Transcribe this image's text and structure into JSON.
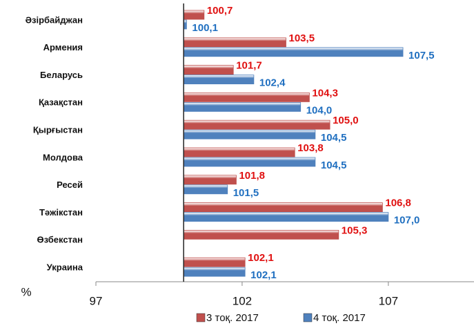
{
  "chart_data": {
    "type": "hbar",
    "axis_label": "%",
    "categories": [
      "Әзірбайджан",
      "Армения",
      "Беларусь",
      "Қазақстан",
      "Қырғыстан",
      "Молдова",
      "Ресей",
      "Тәжікстан",
      "Өзбекстан",
      "Украина"
    ],
    "series": [
      {
        "name": "3 тоқ. 2017",
        "color": "#c0504d",
        "label_color": "#e01010",
        "values": [
          100.7,
          103.5,
          101.7,
          104.3,
          105.0,
          103.8,
          101.8,
          106.8,
          105.3,
          102.1
        ],
        "value_labels": [
          "100,7",
          "103,5",
          "101,7",
          "104,3",
          "105,0",
          "103,8",
          "101,8",
          "106,8",
          "105,3",
          "102,1"
        ]
      },
      {
        "name": "4 тоқ. 2017",
        "color": "#4f81bd",
        "label_color": "#1f6fc0",
        "values": [
          100.1,
          107.5,
          102.4,
          104.0,
          104.5,
          104.5,
          101.5,
          107.0,
          null,
          102.1
        ],
        "value_labels": [
          "100,1",
          "107,5",
          "102,4",
          "104,0",
          "104,5",
          "104,5",
          "101,5",
          "107,0",
          null,
          "102,1"
        ]
      }
    ],
    "base": 100,
    "xlim": [
      97,
      110
    ],
    "xticks": [
      97,
      102,
      107
    ]
  }
}
